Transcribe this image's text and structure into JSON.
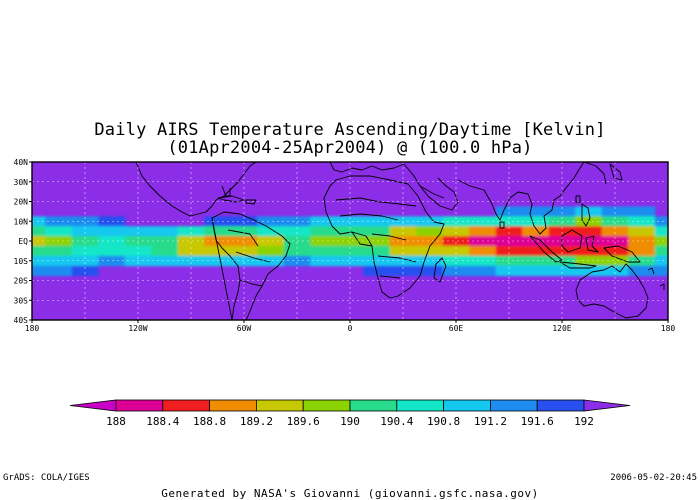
{
  "title_line1": "Daily AIRS Temperature Ascending/Daytime [Kelvin]",
  "title_line2": "(01Apr2004-25Apr2004) @ (100.0 hPa)",
  "lat_labels": [
    "40N",
    "30N",
    "20N",
    "10N",
    "EQ",
    "10S",
    "20S",
    "30S",
    "40S"
  ],
  "lon_labels": [
    "180",
    "120W",
    "60W",
    "0",
    "60E",
    "120E",
    "180"
  ],
  "colorbar": {
    "labels": [
      "188",
      "188.4",
      "188.8",
      "189.2",
      "189.6",
      "190",
      "190.4",
      "190.8",
      "191.2",
      "191.6",
      "192"
    ],
    "colors": [
      "#c800c8",
      "#dc0096",
      "#f01e1e",
      "#f08c00",
      "#c8c800",
      "#8cd200",
      "#28dc8c",
      "#14e6c8",
      "#14c8f0",
      "#1e8cf0",
      "#2850f0",
      "#5a32e6"
    ],
    "low_color": "#c800c8",
    "high_color": "#8c2de8"
  },
  "background_color": "#8c2de8",
  "footer": {
    "left": "GrADS: COLA/IGES",
    "right": "2006-05-02-20:45",
    "credit": "Generated by NASA's Giovanni (giovanni.gsfc.nasa.gov)"
  },
  "chart_data": {
    "type": "heatmap",
    "title": "Daily AIRS Temperature Ascending/Daytime [Kelvin]",
    "subtitle": "(01Apr2004-25Apr2004) @ (100.0 hPa)",
    "xlim": [
      -180,
      180
    ],
    "ylim": [
      -40,
      40
    ],
    "value_range": [
      188,
      192
    ],
    "grid": true,
    "x": [
      -180,
      -165,
      -150,
      -135,
      -120,
      -105,
      -90,
      -75,
      -60,
      -45,
      -30,
      -15,
      0,
      15,
      30,
      45,
      60,
      75,
      90,
      105,
      120,
      135,
      150,
      165,
      180
    ],
    "y": [
      20,
      15,
      10,
      5,
      0,
      -5,
      -10,
      -15,
      -20
    ],
    "z": [
      [
        192,
        192,
        192,
        192,
        192,
        192,
        192,
        192,
        192,
        192,
        192,
        192,
        192,
        192,
        192,
        192,
        192,
        192,
        192,
        192,
        192,
        192,
        192,
        192,
        192
      ],
      [
        192,
        192,
        192,
        192,
        192,
        192,
        192,
        192,
        192,
        192,
        192,
        192,
        192,
        192,
        192,
        192,
        192,
        192,
        191.6,
        191.6,
        191.4,
        191.2,
        191.4,
        191.6,
        192
      ],
      [
        191.2,
        191.4,
        191.6,
        191.8,
        192,
        192,
        192,
        191.8,
        191.8,
        191.6,
        191.6,
        191.2,
        191,
        190.8,
        190.8,
        190.8,
        190.6,
        190.4,
        190.6,
        190.4,
        190,
        189.8,
        190,
        190.6,
        191.4
      ],
      [
        190.2,
        190.4,
        190.8,
        191,
        191.2,
        191,
        190.4,
        190.2,
        190.2,
        190.4,
        190.6,
        190.2,
        190,
        190,
        189.6,
        189.8,
        189.4,
        188.8,
        188.6,
        188.8,
        188.6,
        188.6,
        188.8,
        189.6,
        190.4
      ],
      [
        189.6,
        189.8,
        190.2,
        190.4,
        190.2,
        190,
        189.6,
        189.2,
        189.2,
        189.6,
        190,
        189.8,
        189.8,
        189.8,
        189.2,
        189.2,
        188.6,
        188.2,
        188.2,
        188.2,
        188.2,
        188.2,
        188.2,
        189,
        189.8
      ],
      [
        190,
        190.2,
        190.4,
        190.6,
        190.4,
        190.2,
        189.6,
        189.4,
        189.6,
        189.8,
        190,
        190,
        190.2,
        190,
        189.6,
        189.6,
        189.4,
        188.8,
        188.6,
        188.6,
        188.6,
        188.4,
        188.4,
        189.2,
        190
      ],
      [
        190.8,
        191,
        191.2,
        191.4,
        191.2,
        191,
        190.8,
        190.8,
        191,
        191.2,
        191.4,
        191.2,
        191.2,
        190.8,
        190.8,
        190.8,
        190.6,
        190.4,
        190.2,
        190.2,
        190,
        189.8,
        189.8,
        190.2,
        190.8
      ],
      [
        191.6,
        191.6,
        191.8,
        192,
        192,
        192,
        192,
        192,
        192,
        192,
        192,
        192,
        192,
        191.8,
        191.8,
        191.8,
        191.6,
        191.4,
        191.2,
        191.2,
        191.2,
        191,
        191,
        191.4,
        191.6
      ],
      [
        192,
        192,
        192,
        192,
        192,
        192,
        192,
        192,
        192,
        192,
        192,
        192,
        192,
        192,
        192,
        192,
        192,
        192,
        192,
        192,
        192,
        192,
        192,
        192,
        192
      ]
    ]
  }
}
